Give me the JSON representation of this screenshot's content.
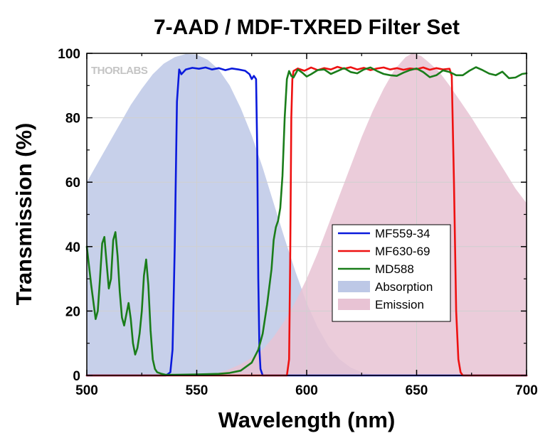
{
  "chart_data": {
    "type": "line",
    "title": "7-AAD / MDF-TXRED Filter Set",
    "xlabel": "Wavelength (nm)",
    "ylabel": "Transmission (%)",
    "xlim": [
      500,
      700
    ],
    "ylim": [
      0,
      100
    ],
    "xticks": [
      500,
      550,
      600,
      650,
      700
    ],
    "yticks": [
      0,
      20,
      40,
      60,
      80,
      100
    ],
    "grid": true,
    "legend_position": "center-right",
    "logo": "THORLABS",
    "series": [
      {
        "name": "MF559-34",
        "kind": "line",
        "color": "#0a1adc",
        "x": [
          500,
          536,
          538,
          539,
          540,
          541,
          542,
          543,
          545,
          548,
          551,
          554,
          557,
          560,
          563,
          566,
          569,
          572,
          574,
          575,
          576,
          577,
          577.5,
          578,
          578.5,
          579,
          580,
          700
        ],
        "y": [
          0,
          0,
          1,
          8,
          40,
          85,
          95,
          93.5,
          95,
          95.5,
          95.2,
          95.6,
          95,
          95.4,
          94.8,
          95.3,
          95,
          94.6,
          93.5,
          92,
          93,
          92,
          70,
          30,
          8,
          2,
          0,
          0
        ]
      },
      {
        "name": "MF630-69",
        "kind": "line",
        "color": "#ee1111",
        "x": [
          500,
          591,
          592,
          592.5,
          593,
          593.5,
          594,
          596,
          599,
          602,
          605,
          608,
          611,
          614,
          617,
          620,
          623,
          626,
          629,
          632,
          635,
          638,
          641,
          644,
          647,
          650,
          653,
          656,
          659,
          662,
          665,
          666,
          667,
          668,
          669,
          670,
          671,
          700
        ],
        "y": [
          0,
          0,
          5,
          35,
          80,
          92,
          94.5,
          95.3,
          94.6,
          95.6,
          94.8,
          95.4,
          95,
          95.8,
          95.2,
          95.7,
          95,
          95.5,
          94.8,
          95.3,
          95.6,
          95,
          95.4,
          94.9,
          95.3,
          95.1,
          95.6,
          94.9,
          95.4,
          95,
          95.2,
          93,
          60,
          20,
          5,
          1,
          0,
          0
        ]
      },
      {
        "name": "MD588",
        "kind": "line",
        "color": "#1a7d1a",
        "x": [
          500,
          502,
          504,
          505,
          506,
          507,
          508,
          509,
          510,
          511,
          512,
          513,
          514,
          515,
          516,
          517,
          518,
          519,
          520,
          521,
          522,
          523,
          524,
          525,
          526,
          527,
          528,
          529,
          530,
          531,
          532,
          534,
          536,
          540,
          550,
          560,
          565,
          570,
          575,
          578,
          580,
          582,
          584,
          585,
          586,
          587,
          588,
          589,
          590,
          591,
          592,
          593,
          594,
          596,
          598,
          600,
          602,
          605,
          608,
          611,
          614,
          617,
          620,
          623,
          626,
          629,
          632,
          635,
          638,
          641,
          644,
          647,
          650,
          653,
          656,
          659,
          662,
          665,
          668,
          671,
          674,
          677,
          680,
          683,
          686,
          689,
          692,
          695,
          698,
          700
        ],
        "y": [
          40,
          28,
          17.5,
          20,
          30,
          41,
          43,
          35,
          27,
          30,
          42,
          44.5,
          37,
          26,
          18,
          15.5,
          19,
          22.5,
          17.5,
          10,
          6.5,
          8.5,
          13,
          20,
          31,
          36,
          28,
          14,
          5,
          2,
          1,
          0.5,
          0.2,
          0.2,
          0.3,
          0.5,
          0.8,
          1.5,
          4,
          8,
          13,
          22,
          33,
          42,
          46,
          48,
          52,
          62,
          80,
          92,
          94.5,
          93,
          92.5,
          95,
          94,
          92.8,
          93.5,
          94.8,
          95,
          93.6,
          94.5,
          95.4,
          94.2,
          93.8,
          95,
          95.6,
          94.5,
          93.6,
          93.2,
          93,
          94,
          94.8,
          95.3,
          94.2,
          92.6,
          93.2,
          94.7,
          94.2,
          93.2,
          93.2,
          94.6,
          95.7,
          94.8,
          93.7,
          93.2,
          94.3,
          92.3,
          92.5,
          93.6,
          93.8
        ]
      },
      {
        "name": "Absorption",
        "kind": "area",
        "color": "#bdc8e6",
        "x": [
          500,
          505,
          510,
          515,
          520,
          525,
          530,
          535,
          540,
          545,
          550,
          555,
          560,
          565,
          570,
          575,
          580,
          585,
          590,
          595,
          600,
          605,
          610,
          615,
          620,
          625,
          630,
          700
        ],
        "y": [
          60,
          66,
          72,
          78,
          84,
          89,
          93.5,
          96.8,
          98.8,
          99.8,
          99.6,
          98,
          95,
          90,
          83,
          74.5,
          64.5,
          53.5,
          42.5,
          32,
          22.5,
          15,
          9,
          5,
          2.5,
          1,
          0.3,
          0
        ]
      },
      {
        "name": "Emission",
        "kind": "area",
        "color": "#e8c3d4",
        "x": [
          500,
          550,
          560,
          565,
          570,
          575,
          580,
          585,
          590,
          595,
          600,
          605,
          610,
          615,
          620,
          625,
          630,
          635,
          640,
          645,
          648,
          652,
          655,
          660,
          665,
          670,
          675,
          680,
          685,
          690,
          695,
          700
        ],
        "y": [
          0,
          0,
          0.8,
          2,
          3.5,
          5.5,
          8,
          12,
          17,
          23,
          30,
          38,
          47,
          56,
          65,
          74,
          82,
          89,
          95,
          98.8,
          100,
          99.2,
          97.5,
          94.5,
          90,
          85,
          80,
          74.5,
          69,
          63.5,
          58,
          53.5
        ]
      }
    ]
  }
}
